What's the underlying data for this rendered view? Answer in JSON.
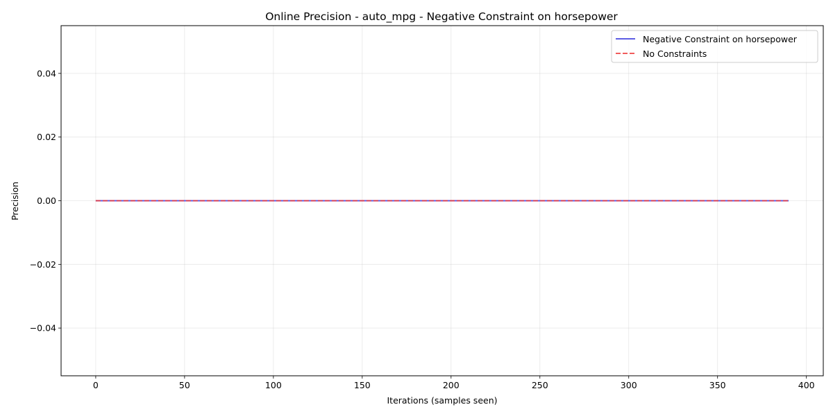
{
  "chart_data": {
    "type": "line",
    "title": "Online Precision - auto_mpg - Negative Constraint on horsepower",
    "xlabel": "Iterations (samples seen)",
    "ylabel": "Precision",
    "xlim": [
      -19.5,
      409.5
    ],
    "ylim": [
      -0.055,
      0.055
    ],
    "x_ticks": [
      0,
      50,
      100,
      150,
      200,
      250,
      300,
      350,
      400
    ],
    "y_ticks": [
      -0.04,
      -0.02,
      0.0,
      0.02,
      0.04
    ],
    "x_tick_labels": [
      "0",
      "50",
      "100",
      "150",
      "200",
      "250",
      "300",
      "350",
      "400"
    ],
    "y_tick_labels": [
      "−0.04",
      "−0.02",
      "0.00",
      "0.02",
      "0.04"
    ],
    "grid": true,
    "legend_position": "top-right",
    "series": [
      {
        "name": "Negative Constraint on horsepower",
        "color": "#3333dd",
        "style": "solid",
        "x": [
          0,
          390
        ],
        "y": [
          0,
          0
        ]
      },
      {
        "name": "No Constraints",
        "color": "#ee3333",
        "style": "dashed",
        "x": [
          0,
          390
        ],
        "y": [
          0,
          0
        ]
      }
    ]
  }
}
